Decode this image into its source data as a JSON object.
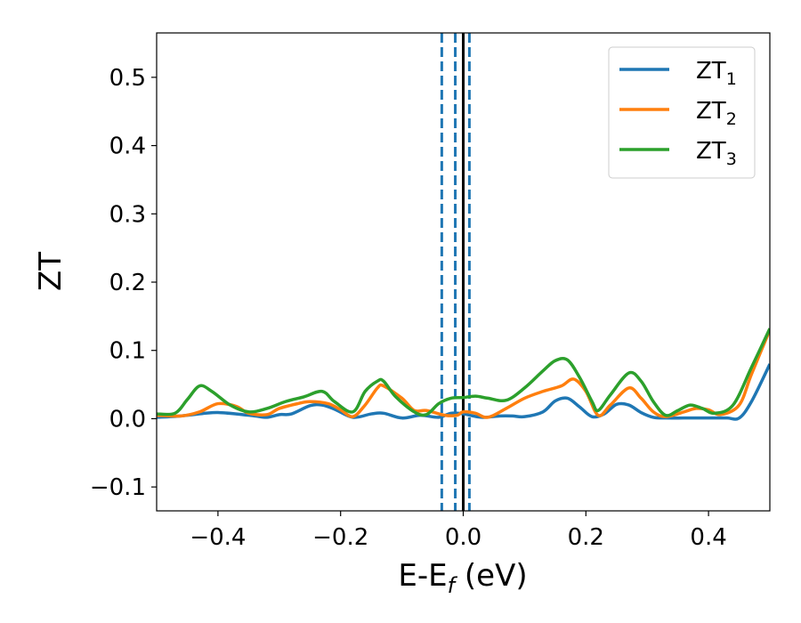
{
  "chart_data": {
    "type": "line",
    "xlabel": "E-E",
    "xlabel_sub": "f",
    "xlabel_unit": " (eV)",
    "ylabel": "ZT",
    "xlim": [
      -0.5,
      0.5
    ],
    "ylim": [
      -0.135,
      0.565
    ],
    "xticks": [
      -0.4,
      -0.2,
      0.0,
      0.2,
      0.4
    ],
    "xtick_labels": [
      "−0.4",
      "−0.2",
      "0.0",
      "0.2",
      "0.4"
    ],
    "yticks": [
      -0.1,
      0.0,
      0.1,
      0.2,
      0.3,
      0.4,
      0.5
    ],
    "ytick_labels": [
      "−0.1",
      "0.0",
      "0.1",
      "0.2",
      "0.3",
      "0.4",
      "0.5"
    ],
    "grid": false,
    "legend_position": "top-right",
    "vertical_lines": [
      {
        "x": -0.035,
        "style": "dashed",
        "color": "#1f77b4"
      },
      {
        "x": -0.013,
        "style": "dashed",
        "color": "#1f77b4"
      },
      {
        "x": 0.0,
        "style": "solid",
        "color": "#000000"
      },
      {
        "x": 0.01,
        "style": "dashed",
        "color": "#1f77b4"
      }
    ],
    "series": [
      {
        "name": "ZT",
        "sub": "1",
        "color": "#1f77b4",
        "x": [
          -0.5,
          -0.46,
          -0.42,
          -0.4,
          -0.37,
          -0.34,
          -0.32,
          -0.3,
          -0.28,
          -0.25,
          -0.23,
          -0.21,
          -0.18,
          -0.15,
          -0.13,
          -0.1,
          -0.07,
          -0.04,
          -0.02,
          0.0,
          0.03,
          0.06,
          0.08,
          0.1,
          0.13,
          0.15,
          0.17,
          0.19,
          0.21,
          0.23,
          0.25,
          0.27,
          0.29,
          0.31,
          0.33,
          0.36,
          0.38,
          0.4,
          0.43,
          0.45,
          0.47,
          0.5
        ],
        "y": [
          0.002,
          0.004,
          0.008,
          0.009,
          0.007,
          0.004,
          0.002,
          0.006,
          0.007,
          0.019,
          0.02,
          0.014,
          0.002,
          0.007,
          0.008,
          0.001,
          0.005,
          0.002,
          0.008,
          0.007,
          0.002,
          0.004,
          0.004,
          0.003,
          0.01,
          0.026,
          0.03,
          0.017,
          0.003,
          0.007,
          0.021,
          0.02,
          0.009,
          0.002,
          0.001,
          0.001,
          0.001,
          0.001,
          0.001,
          0.001,
          0.025,
          0.08
        ]
      },
      {
        "name": "ZT",
        "sub": "2",
        "color": "#ff7f0e",
        "x": [
          -0.5,
          -0.46,
          -0.43,
          -0.4,
          -0.37,
          -0.35,
          -0.32,
          -0.3,
          -0.27,
          -0.25,
          -0.22,
          -0.2,
          -0.18,
          -0.16,
          -0.14,
          -0.13,
          -0.1,
          -0.08,
          -0.06,
          -0.03,
          -0.01,
          0.0,
          0.02,
          0.04,
          0.07,
          0.1,
          0.13,
          0.16,
          0.18,
          0.2,
          0.22,
          0.24,
          0.27,
          0.29,
          0.31,
          0.33,
          0.36,
          0.38,
          0.4,
          0.42,
          0.45,
          0.47,
          0.5
        ],
        "y": [
          0.005,
          0.004,
          0.01,
          0.022,
          0.018,
          0.008,
          0.006,
          0.015,
          0.022,
          0.025,
          0.022,
          0.013,
          0.003,
          0.02,
          0.045,
          0.048,
          0.03,
          0.012,
          0.012,
          0.005,
          0.005,
          0.01,
          0.008,
          0.002,
          0.015,
          0.03,
          0.04,
          0.048,
          0.058,
          0.04,
          0.005,
          0.02,
          0.045,
          0.03,
          0.01,
          0.003,
          0.01,
          0.015,
          0.013,
          0.006,
          0.02,
          0.065,
          0.13
        ]
      },
      {
        "name": "ZT",
        "sub": "3",
        "color": "#2ca02c",
        "x": [
          -0.5,
          -0.47,
          -0.45,
          -0.43,
          -0.41,
          -0.38,
          -0.35,
          -0.32,
          -0.29,
          -0.26,
          -0.23,
          -0.21,
          -0.18,
          -0.16,
          -0.14,
          -0.13,
          -0.11,
          -0.08,
          -0.06,
          -0.04,
          -0.02,
          0.0,
          0.02,
          0.04,
          0.07,
          0.1,
          0.13,
          0.15,
          0.17,
          0.19,
          0.21,
          0.22,
          0.24,
          0.27,
          0.29,
          0.31,
          0.33,
          0.35,
          0.37,
          0.39,
          0.41,
          0.44,
          0.47,
          0.5
        ],
        "y": [
          0.007,
          0.008,
          0.028,
          0.048,
          0.04,
          0.02,
          0.01,
          0.015,
          0.025,
          0.032,
          0.04,
          0.025,
          0.01,
          0.04,
          0.055,
          0.055,
          0.032,
          0.01,
          0.006,
          0.022,
          0.03,
          0.031,
          0.033,
          0.03,
          0.027,
          0.045,
          0.07,
          0.085,
          0.086,
          0.06,
          0.025,
          0.012,
          0.035,
          0.067,
          0.055,
          0.025,
          0.005,
          0.012,
          0.02,
          0.015,
          0.008,
          0.02,
          0.075,
          0.132
        ]
      }
    ]
  }
}
